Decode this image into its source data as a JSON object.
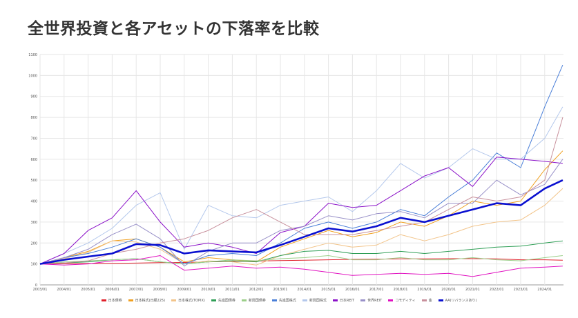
{
  "title": "全世界投資と各アセットの下落率を比較",
  "chart_data": {
    "type": "line",
    "title": "全世界投資と各アセットの下落率を比較",
    "xlabel": "",
    "ylabel": "",
    "ylim": [
      0,
      1100
    ],
    "yticks": [
      "0",
      "100",
      "200",
      "300",
      "400",
      "500",
      "600",
      "700",
      "800",
      "900",
      "1000",
      "1100"
    ],
    "xticks": [
      "2003/01",
      "2004/01",
      "2005/01",
      "2006/01",
      "2007/01",
      "2008/01",
      "2009/01",
      "2010/01",
      "2011/01",
      "2012/01",
      "2013/01",
      "2014/01",
      "2015/01",
      "2016/01",
      "2017/01",
      "2018/01",
      "2019/01",
      "2020/01",
      "2021/01",
      "2022/01",
      "2023/01",
      "2024/01"
    ],
    "grid": true,
    "legend": "bottom",
    "x": [
      2003,
      2004,
      2005,
      2006,
      2007,
      2008,
      2009,
      2010,
      2011,
      2012,
      2013,
      2014,
      2015,
      2016,
      2017,
      2018,
      2019,
      2020,
      2021,
      2022,
      2023,
      2024,
      2024.75
    ],
    "series": [
      {
        "name": "日本債券",
        "color": "#e0202a",
        "values": [
          100,
          101,
          102,
          103,
          104,
          106,
          107,
          110,
          112,
          114,
          116,
          118,
          120,
          122,
          123,
          124,
          124,
          125,
          125,
          124,
          120,
          120,
          118
        ]
      },
      {
        "name": "日本株式(日経225)",
        "color": "#f0a020",
        "values": [
          100,
          130,
          160,
          210,
          220,
          180,
          110,
          130,
          120,
          110,
          180,
          220,
          260,
          230,
          250,
          300,
          280,
          330,
          400,
          380,
          400,
          550,
          640
        ]
      },
      {
        "name": "日本株式(TOPIX)",
        "color": "#f2c48a",
        "values": [
          100,
          125,
          155,
          210,
          205,
          170,
          100,
          115,
          110,
          95,
          140,
          170,
          200,
          180,
          190,
          240,
          210,
          240,
          280,
          300,
          310,
          380,
          460
        ]
      },
      {
        "name": "先進国債券",
        "color": "#2e9e55",
        "values": [
          100,
          105,
          110,
          120,
          125,
          110,
          100,
          110,
          115,
          110,
          140,
          160,
          165,
          150,
          150,
          160,
          150,
          160,
          170,
          180,
          185,
          200,
          210
        ]
      },
      {
        "name": "新興国債券",
        "color": "#9ccf8a",
        "values": [
          100,
          110,
          115,
          120,
          125,
          110,
          100,
          110,
          120,
          115,
          125,
          130,
          140,
          120,
          120,
          130,
          120,
          120,
          130,
          120,
          115,
          130,
          140
        ]
      },
      {
        "name": "先進国株式",
        "color": "#4a7fd8",
        "values": [
          100,
          130,
          150,
          180,
          220,
          180,
          100,
          140,
          150,
          140,
          200,
          270,
          300,
          270,
          300,
          360,
          330,
          420,
          500,
          630,
          560,
          850,
          1050
        ]
      },
      {
        "name": "新興国株式",
        "color": "#b4c8ec",
        "values": [
          100,
          150,
          200,
          270,
          380,
          440,
          170,
          380,
          330,
          320,
          380,
          400,
          420,
          350,
          450,
          580,
          510,
          560,
          650,
          600,
          600,
          700,
          850
        ]
      },
      {
        "name": "日本REIT",
        "color": "#8a10c8",
        "values": [
          100,
          150,
          260,
          320,
          450,
          300,
          180,
          200,
          180,
          150,
          250,
          280,
          390,
          370,
          380,
          450,
          520,
          560,
          470,
          610,
          600,
          590,
          580
        ]
      },
      {
        "name": "世界REIT",
        "color": "#9890c8",
        "values": [
          100,
          130,
          170,
          240,
          290,
          220,
          90,
          160,
          200,
          200,
          260,
          280,
          330,
          310,
          340,
          350,
          320,
          390,
          390,
          500,
          430,
          480,
          600
        ]
      },
      {
        "name": "コモディティ",
        "color": "#e010c0",
        "values": [
          100,
          95,
          100,
          115,
          120,
          140,
          70,
          80,
          90,
          80,
          85,
          75,
          60,
          45,
          50,
          55,
          50,
          55,
          40,
          60,
          80,
          85,
          90
        ]
      },
      {
        "name": "金",
        "color": "#c8909c",
        "values": [
          100,
          105,
          115,
          150,
          170,
          200,
          220,
          260,
          320,
          360,
          300,
          240,
          240,
          240,
          260,
          280,
          300,
          360,
          420,
          400,
          420,
          500,
          800
        ]
      },
      {
        "name": "AA(リバランスあり)",
        "color": "#0a10d0",
        "values": [
          100,
          120,
          135,
          150,
          195,
          190,
          150,
          165,
          160,
          155,
          190,
          230,
          270,
          255,
          280,
          320,
          300,
          330,
          360,
          390,
          380,
          460,
          500
        ]
      }
    ]
  }
}
